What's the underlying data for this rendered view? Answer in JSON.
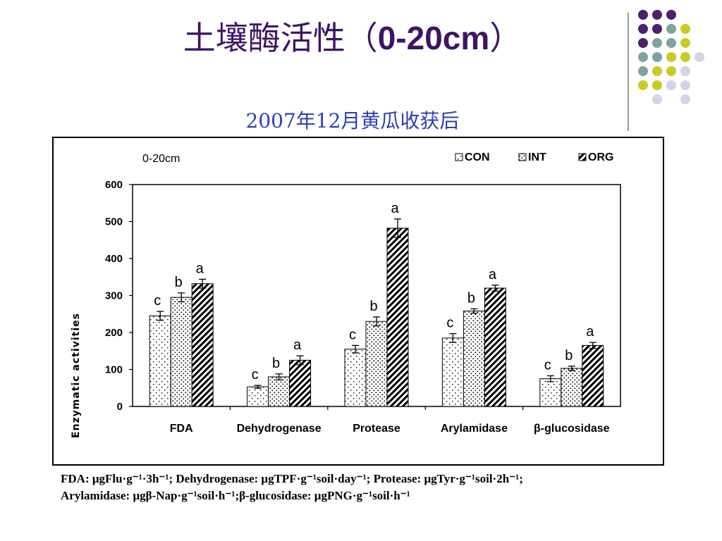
{
  "slide": {
    "title_cn": "土壤酶活性（",
    "title_en": "0-20cm",
    "title_close": "）",
    "subtitle": "2007年12月黄瓜收获后"
  },
  "decoration": {
    "colors": [
      "#4e1f6b",
      "#7fa3a1",
      "#c9cc24",
      "#d4d3e6"
    ],
    "grid": [
      [
        "purple",
        "purple",
        "purple",
        null,
        null
      ],
      [
        "purple",
        "purple",
        "teal",
        "yellow",
        null
      ],
      [
        "purple",
        "teal",
        "teal",
        "yellow",
        null
      ],
      [
        "teal",
        "teal",
        "yellow",
        "yellow",
        "lavender"
      ],
      [
        "teal",
        "yellow",
        "yellow",
        "lavender",
        null
      ],
      [
        "yellow",
        "yellow",
        "lavender",
        "lavender",
        null
      ],
      [
        null,
        "lavender",
        null,
        "lavender",
        null
      ]
    ]
  },
  "chart_data": {
    "type": "bar",
    "annotation": "0-20cm",
    "ylabel": "Enzymatic activities",
    "ylim": [
      0,
      600
    ],
    "yticks": [
      0,
      100,
      200,
      300,
      400,
      500,
      600
    ],
    "categories": [
      "FDA",
      "Dehydrogenase",
      "Protease",
      "Arylamidase",
      "β-glucosidase"
    ],
    "legend_position": "top-right",
    "series": [
      {
        "name": "CON",
        "pattern": "dots-sparse",
        "values": [
          245,
          53,
          155,
          185,
          75
        ],
        "errors": [
          12,
          4,
          10,
          12,
          8
        ],
        "letters": [
          "c",
          "c",
          "c",
          "c",
          "c"
        ]
      },
      {
        "name": "INT",
        "pattern": "dots-dense",
        "values": [
          295,
          80,
          230,
          258,
          103
        ],
        "errors": [
          12,
          8,
          12,
          6,
          6
        ],
        "letters": [
          "b",
          "b",
          "b",
          "b",
          "b"
        ]
      },
      {
        "name": "ORG",
        "pattern": "diagonal",
        "values": [
          332,
          125,
          482,
          320,
          165
        ],
        "errors": [
          12,
          12,
          25,
          8,
          8
        ],
        "letters": [
          "a",
          "a",
          "a",
          "a",
          "a"
        ]
      }
    ]
  },
  "footnote": {
    "line1": "FDA: μgFlu·g⁻¹·3h⁻¹; Dehydrogenase: μgTPF·g⁻¹soil·day⁻¹; Protease: μgTyr·g⁻¹soil·2h⁻¹;",
    "line2": "Arylamidase: μgβ-Nap·g⁻¹soil·h⁻¹;β-glucosidase: μgPNG·g⁻¹soil·h⁻¹"
  }
}
